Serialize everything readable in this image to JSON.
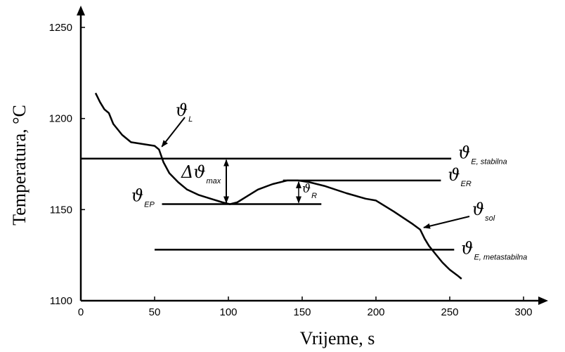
{
  "chart_data": {
    "type": "line",
    "xlabel": "Vrijeme, s",
    "ylabel": "Temperatura, °C",
    "xlim": [
      0,
      300
    ],
    "ylim": [
      1100,
      1250
    ],
    "xticks": [
      "0",
      "50",
      "100",
      "150",
      "200",
      "250",
      "300"
    ],
    "yticks": [
      "1100",
      "1150",
      "1200",
      "1250"
    ],
    "series": [
      {
        "x": [
          10,
          13,
          16,
          19,
          22,
          28,
          34,
          42,
          50,
          53,
          56,
          60,
          66,
          72,
          80,
          88,
          96,
          101,
          106,
          112,
          120,
          130,
          140,
          147,
          155,
          165,
          180,
          193,
          200,
          212,
          225,
          230,
          233,
          236,
          240,
          245,
          250,
          255,
          258
        ],
        "y": [
          1214,
          1209,
          1205,
          1203,
          1197,
          1191,
          1187,
          1186,
          1185,
          1183,
          1176,
          1170,
          1165,
          1161,
          1158,
          1156,
          1154,
          1153,
          1154,
          1157,
          1161,
          1164,
          1166,
          1166,
          1165,
          1163,
          1159,
          1156,
          1155,
          1149,
          1142,
          1139,
          1134,
          1130,
          1126,
          1121,
          1117,
          1114,
          1112
        ]
      }
    ],
    "reference_lines": [
      {
        "symbol": "ϑ",
        "sub": "E, stabilna",
        "y": 1178,
        "x": [
          0,
          251
        ]
      },
      {
        "symbol": "ϑ",
        "sub": "ER",
        "y": 1166,
        "x": [
          137,
          244
        ]
      },
      {
        "symbol": "ϑ",
        "sub": "EP",
        "y": 1153,
        "x": [
          55,
          163
        ]
      },
      {
        "symbol": "ϑ",
        "sub": "E, metastabilna",
        "y": 1128,
        "x": [
          50,
          253
        ]
      }
    ],
    "annotations": [
      {
        "symbol": "ϑ",
        "sub": "L",
        "x": 53,
        "y": 1183
      },
      {
        "symbol": "ϑ",
        "sub": "sol",
        "x": 230,
        "y": 1139
      },
      {
        "symbol": "Δϑ",
        "sub": "max",
        "x": 101,
        "y": [
          1153,
          1178
        ]
      },
      {
        "symbol": "ϑ",
        "sub": "R",
        "x": 147,
        "y": [
          1153,
          1166
        ]
      }
    ]
  }
}
